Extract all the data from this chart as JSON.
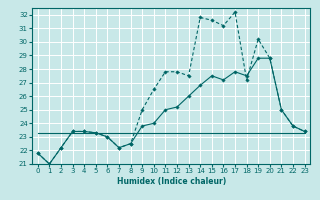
{
  "title": "",
  "xlabel": "Humidex (Indice chaleur)",
  "bg_color": "#c8e8e8",
  "grid_color": "#ffffff",
  "line_color": "#006666",
  "xlim": [
    -0.5,
    23.5
  ],
  "ylim": [
    21,
    32.5
  ],
  "yticks": [
    21,
    22,
    23,
    24,
    25,
    26,
    27,
    28,
    29,
    30,
    31,
    32
  ],
  "xticks": [
    0,
    1,
    2,
    3,
    4,
    5,
    6,
    7,
    8,
    9,
    10,
    11,
    12,
    13,
    14,
    15,
    16,
    17,
    18,
    19,
    20,
    21,
    22,
    23
  ],
  "series1_x": [
    0,
    1,
    2,
    3,
    4,
    5,
    6,
    7,
    8,
    9,
    10,
    11,
    12,
    13,
    14,
    15,
    16,
    17,
    18,
    19,
    20,
    21,
    22,
    23
  ],
  "series1_y": [
    21.8,
    21.0,
    22.2,
    23.4,
    23.4,
    23.3,
    23.0,
    22.2,
    22.5,
    25.0,
    26.5,
    27.8,
    27.8,
    27.5,
    31.8,
    31.6,
    31.2,
    32.2,
    27.2,
    30.2,
    28.8,
    25.0,
    23.8,
    23.4
  ],
  "series2_x": [
    0,
    1,
    2,
    3,
    4,
    5,
    6,
    7,
    8,
    9,
    10,
    11,
    12,
    13,
    14,
    15,
    16,
    17,
    18,
    19,
    20,
    21,
    22,
    23
  ],
  "series2_y": [
    21.8,
    21.0,
    22.2,
    23.4,
    23.4,
    23.3,
    23.0,
    22.2,
    22.5,
    23.8,
    24.0,
    25.0,
    25.2,
    26.0,
    26.8,
    27.5,
    27.2,
    27.8,
    27.5,
    28.8,
    28.8,
    25.0,
    23.8,
    23.4
  ],
  "series3_x": [
    0,
    23
  ],
  "series3_y": [
    23.3,
    23.3
  ]
}
